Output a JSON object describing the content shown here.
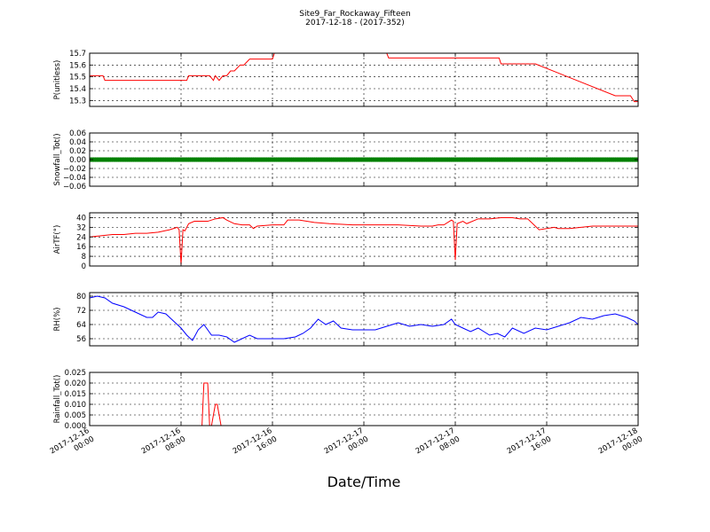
{
  "figure": {
    "title": "Site9_Far_Rockaway_Fifteen",
    "subtitle": "2017-12-18 - (2017-352)",
    "xlabel": "Date/Time"
  },
  "chart_data": [
    {
      "type": "line",
      "ylabel": "P(unitless)",
      "color": "#ff0000",
      "xlim": [
        "2017-12-16 00:00",
        "2017-12-18 00:00"
      ],
      "ylim": [
        15.25,
        15.7
      ],
      "yticks": [
        15.3,
        15.4,
        15.5,
        15.6,
        15.7
      ],
      "ytick_labels": [
        "15.3",
        "15.4",
        "15.5",
        "15.6",
        "15.7"
      ],
      "grid": true,
      "series": [
        {
          "x": [
            "2017-12-16 00:00",
            "2017-12-16 01:10",
            "2017-12-16 01:20",
            "2017-12-16 04:40",
            "2017-12-16 08:30",
            "2017-12-16 08:40",
            "2017-12-16 10:30",
            "2017-12-16 10:50",
            "2017-12-16 11:00",
            "2017-12-16 11:20",
            "2017-12-16 11:40",
            "2017-12-16 12:00",
            "2017-12-16 12:20",
            "2017-12-16 12:40",
            "2017-12-16 13:10",
            "2017-12-16 13:30",
            "2017-12-16 14:00",
            "2017-12-16 14:20",
            "2017-12-16 15:10",
            "2017-12-16 15:30",
            "2017-12-16 16:00",
            "2017-12-16 16:10",
            "2017-12-17 02:00",
            "2017-12-17 02:10",
            "2017-12-17 06:00",
            "2017-12-17 06:10",
            "2017-12-17 11:50",
            "2017-12-17 12:00",
            "2017-12-17 12:20",
            "2017-12-17 12:40",
            "2017-12-17 13:40",
            "2017-12-17 14:10",
            "2017-12-17 15:00",
            "2017-12-17 22:00",
            "2017-12-17 23:20",
            "2017-12-17 23:40",
            "2017-12-18 00:00"
          ],
          "y": [
            15.51,
            15.51,
            15.47,
            15.47,
            15.47,
            15.51,
            15.51,
            15.47,
            15.51,
            15.47,
            15.51,
            15.51,
            15.55,
            15.55,
            15.6,
            15.6,
            15.65,
            15.65,
            15.65,
            15.65,
            15.65,
            15.7,
            15.7,
            15.66,
            15.66,
            15.66,
            15.66,
            15.61,
            15.61,
            15.61,
            15.61,
            15.61,
            15.61,
            15.34,
            15.34,
            15.29,
            15.29
          ]
        }
      ]
    },
    {
      "type": "scatter",
      "ylabel": "Snowfall_Tot()",
      "color": "#008000",
      "xlim": [
        "2017-12-16 00:00",
        "2017-12-18 00:00"
      ],
      "ylim": [
        -0.06,
        0.06
      ],
      "yticks": [
        -0.06,
        -0.04,
        -0.02,
        0.0,
        0.02,
        0.04,
        0.06
      ],
      "ytick_labels": [
        "−0.06",
        "−0.04",
        "−0.02",
        "0.00",
        "0.02",
        "0.04",
        "0.06"
      ],
      "grid": true,
      "series": [
        {
          "x_range": [
            "2017-12-16 00:00",
            "2017-12-18 00:00"
          ],
          "interval_minutes": 10,
          "value": 0.0
        }
      ]
    },
    {
      "type": "line",
      "ylabel": "AirTF(°)",
      "color": "#ff0000",
      "xlim": [
        "2017-12-16 00:00",
        "2017-12-18 00:00"
      ],
      "ylim": [
        0,
        44
      ],
      "yticks": [
        0,
        8,
        16,
        24,
        32,
        40
      ],
      "ytick_labels": [
        "0",
        "8",
        "16",
        "24",
        "32",
        "40"
      ],
      "grid": true,
      "series": [
        {
          "x": [
            "2017-12-16 00:00",
            "2017-12-16 01:00",
            "2017-12-16 02:00",
            "2017-12-16 03:00",
            "2017-12-16 04:00",
            "2017-12-16 05:00",
            "2017-12-16 06:00",
            "2017-12-16 07:00",
            "2017-12-16 07:40",
            "2017-12-16 07:50",
            "2017-12-16 08:00",
            "2017-12-16 08:10",
            "2017-12-16 08:20",
            "2017-12-16 08:40",
            "2017-12-16 09:10",
            "2017-12-16 09:40",
            "2017-12-16 10:20",
            "2017-12-16 11:00",
            "2017-12-16 11:40",
            "2017-12-16 12:00",
            "2017-12-16 12:40",
            "2017-12-16 13:20",
            "2017-12-16 14:00",
            "2017-12-16 14:20",
            "2017-12-16 14:40",
            "2017-12-16 16:00",
            "2017-12-16 17:00",
            "2017-12-16 17:20",
            "2017-12-16 18:20",
            "2017-12-16 19:40",
            "2017-12-16 21:00",
            "2017-12-16 23:00",
            "2017-12-17 01:00",
            "2017-12-17 03:00",
            "2017-12-17 05:00",
            "2017-12-17 06:00",
            "2017-12-17 06:30",
            "2017-12-17 07:00",
            "2017-12-17 07:30",
            "2017-12-17 07:40",
            "2017-12-17 07:50",
            "2017-12-17 08:00",
            "2017-12-17 08:10",
            "2017-12-17 08:40",
            "2017-12-17 09:00",
            "2017-12-17 10:00",
            "2017-12-17 11:00",
            "2017-12-17 12:00",
            "2017-12-17 13:00",
            "2017-12-17 13:40",
            "2017-12-17 14:20",
            "2017-12-17 14:40",
            "2017-12-17 15:20",
            "2017-12-17 16:40",
            "2017-12-17 17:00",
            "2017-12-17 17:20",
            "2017-12-17 18:00",
            "2017-12-17 20:00",
            "2017-12-17 22:00",
            "2017-12-18 00:00"
          ],
          "y": [
            24,
            25,
            26,
            26,
            27,
            27,
            28,
            30,
            32,
            30,
            1,
            30,
            29,
            35,
            37,
            37,
            37,
            39,
            40,
            38,
            35,
            34,
            34,
            31,
            33,
            34,
            34,
            38,
            38,
            36,
            35,
            34,
            34,
            34,
            33,
            33,
            34,
            34,
            37,
            38,
            37,
            5,
            35,
            37,
            35,
            39,
            39,
            40,
            40,
            39,
            39,
            36,
            30,
            32,
            31,
            31,
            31,
            33,
            33,
            33
          ]
        }
      ]
    },
    {
      "type": "line",
      "ylabel": "RH(%)",
      "color": "#0000ff",
      "xlim": [
        "2017-12-16 00:00",
        "2017-12-18 00:00"
      ],
      "ylim": [
        52,
        82
      ],
      "yticks": [
        56,
        64,
        72,
        80
      ],
      "ytick_labels": [
        "56",
        "64",
        "72",
        "80"
      ],
      "grid": true,
      "series": [
        {
          "x": [
            "2017-12-16 00:00",
            "2017-12-16 00:40",
            "2017-12-16 01:20",
            "2017-12-16 02:00",
            "2017-12-16 03:00",
            "2017-12-16 04:00",
            "2017-12-16 05:00",
            "2017-12-16 05:30",
            "2017-12-16 06:00",
            "2017-12-16 06:40",
            "2017-12-16 07:20",
            "2017-12-16 08:00",
            "2017-12-16 08:30",
            "2017-12-16 09:00",
            "2017-12-16 09:30",
            "2017-12-16 10:00",
            "2017-12-16 10:40",
            "2017-12-16 11:20",
            "2017-12-16 12:00",
            "2017-12-16 12:40",
            "2017-12-16 13:20",
            "2017-12-16 14:00",
            "2017-12-16 14:40",
            "2017-12-16 15:20",
            "2017-12-16 16:00",
            "2017-12-16 17:00",
            "2017-12-16 18:00",
            "2017-12-16 18:40",
            "2017-12-16 19:20",
            "2017-12-16 20:00",
            "2017-12-16 20:40",
            "2017-12-16 21:20",
            "2017-12-16 22:00",
            "2017-12-16 23:00",
            "2017-12-17 00:00",
            "2017-12-17 01:00",
            "2017-12-17 02:00",
            "2017-12-17 03:00",
            "2017-12-17 04:00",
            "2017-12-17 05:00",
            "2017-12-17 06:00",
            "2017-12-17 07:00",
            "2017-12-17 07:40",
            "2017-12-17 08:00",
            "2017-12-17 08:40",
            "2017-12-17 09:20",
            "2017-12-17 10:00",
            "2017-12-17 11:00",
            "2017-12-17 11:40",
            "2017-12-17 12:20",
            "2017-12-17 13:00",
            "2017-12-17 14:00",
            "2017-12-17 15:00",
            "2017-12-17 16:00",
            "2017-12-17 17:00",
            "2017-12-17 18:00",
            "2017-12-17 19:00",
            "2017-12-17 20:00",
            "2017-12-17 21:00",
            "2017-12-17 22:00",
            "2017-12-17 23:00",
            "2017-12-17 23:40",
            "2017-12-18 00:00"
          ],
          "y": [
            79,
            80,
            79,
            76,
            74,
            71,
            68,
            68,
            71,
            70,
            66,
            62,
            58,
            55,
            61,
            64,
            58,
            58,
            57,
            54,
            56,
            58,
            56,
            56,
            56,
            56,
            57,
            59,
            62,
            67,
            64,
            66,
            62,
            61,
            61,
            61,
            63,
            65,
            63,
            64,
            63,
            64,
            67,
            64,
            62,
            60,
            62,
            58,
            59,
            57,
            62,
            59,
            62,
            61,
            63,
            65,
            68,
            67,
            69,
            70,
            68,
            66,
            64
          ]
        }
      ]
    },
    {
      "type": "line",
      "ylabel": "Rainfall_Tot()",
      "color": "#ff0000",
      "xlim": [
        "2017-12-16 00:00",
        "2017-12-18 00:00"
      ],
      "ylim": [
        0,
        0.025
      ],
      "yticks": [
        0.0,
        0.005,
        0.01,
        0.015,
        0.02,
        0.025
      ],
      "ytick_labels": [
        "0.000",
        "0.005",
        "0.010",
        "0.015",
        "0.020",
        "0.025"
      ],
      "grid": true,
      "series": [
        {
          "x": [
            "2017-12-16 00:00",
            "2017-12-16 09:50",
            "2017-12-16 10:00",
            "2017-12-16 10:20",
            "2017-12-16 10:30",
            "2017-12-16 10:40",
            "2017-12-16 11:00",
            "2017-12-16 11:10",
            "2017-12-16 11:30",
            "2017-12-16 11:40",
            "2017-12-18 00:00"
          ],
          "y": [
            0,
            0,
            0.02,
            0.02,
            0,
            0,
            0.01,
            0.01,
            0,
            0,
            0
          ]
        }
      ]
    }
  ],
  "shared_xaxis": {
    "ticks": [
      "2017-12-16 00:00",
      "2017-12-16 08:00",
      "2017-12-16 16:00",
      "2017-12-17 00:00",
      "2017-12-17 08:00",
      "2017-12-17 16:00",
      "2017-12-18 00:00"
    ],
    "tick_labels": [
      [
        "2017-12-16",
        "00:00"
      ],
      [
        "2017-12-16",
        "08:00"
      ],
      [
        "2017-12-16",
        "16:00"
      ],
      [
        "2017-12-17",
        "00:00"
      ],
      [
        "2017-12-17",
        "08:00"
      ],
      [
        "2017-12-17",
        "16:00"
      ],
      [
        "2017-12-18",
        "00:00"
      ]
    ]
  }
}
